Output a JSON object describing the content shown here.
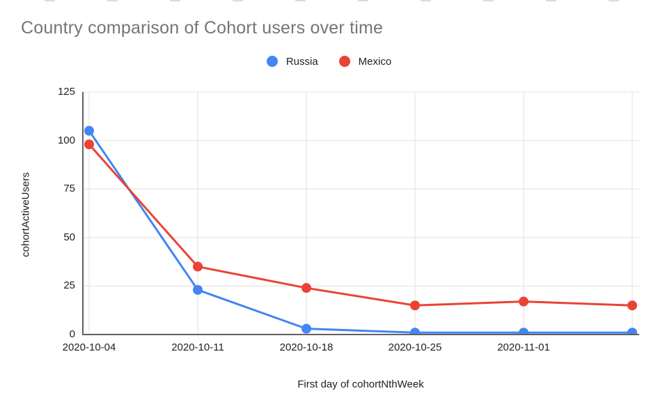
{
  "page": {
    "title": "Country comparison of Cohort users over time"
  },
  "chart_data": {
    "type": "line",
    "title": "Country comparison of Cohort users over time",
    "xlabel": "First day of cohortNthWeek",
    "ylabel": "cohortActiveUsers",
    "categories": [
      "2020-10-04",
      "2020-10-11",
      "2020-10-18",
      "2020-10-25",
      "2020-11-01",
      ""
    ],
    "series": [
      {
        "name": "Russia",
        "color": "#4285F4",
        "values": [
          105,
          23,
          3,
          1,
          1,
          1
        ]
      },
      {
        "name": "Mexico",
        "color": "#EA4335",
        "values": [
          98,
          35,
          24,
          15,
          17,
          15
        ]
      }
    ],
    "y_ticks": [
      0,
      25,
      50,
      75,
      100,
      125
    ],
    "ylim": [
      0,
      125
    ],
    "grid": true,
    "legend_position": "top-center",
    "marker": "circle",
    "colors": {
      "grid": "#e0e0e0",
      "axis_line": "#616161",
      "tick_text": "#212121",
      "title_text": "#757575"
    }
  }
}
